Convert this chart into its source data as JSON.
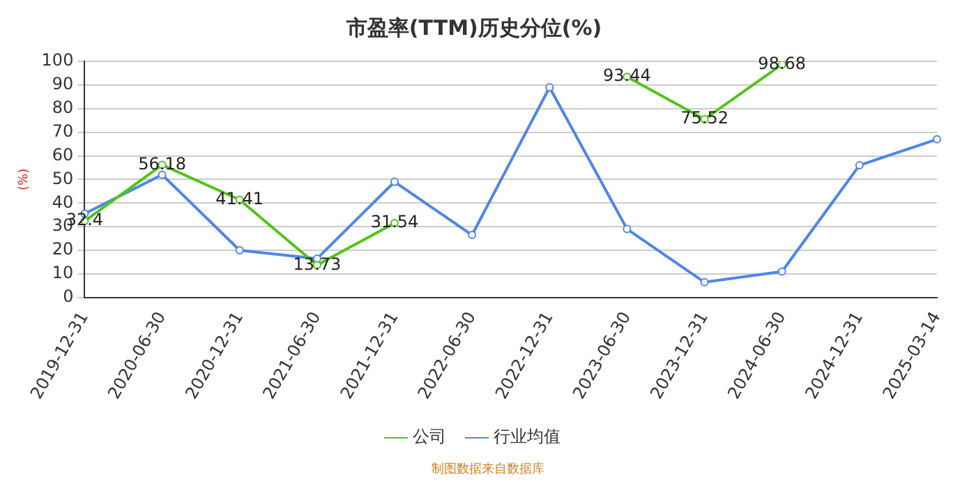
{
  "chart_data": {
    "type": "line",
    "title": "市盈率(TTM)历史分位(%)",
    "ylabel": "(%)",
    "categories": [
      "2019-12-31",
      "2020-06-30",
      "2020-12-31",
      "2021-06-30",
      "2021-12-31",
      "2022-06-30",
      "2022-12-31",
      "2023-06-30",
      "2023-12-31",
      "2024-06-30",
      "2024-12-31",
      "2025-03-14"
    ],
    "series": [
      {
        "name": "公司",
        "color": "#52c41a",
        "values": [
          32.4,
          56.18,
          41.41,
          13.73,
          31.54,
          null,
          null,
          93.44,
          75.52,
          98.68,
          null,
          null
        ],
        "value_labels": [
          "32.4",
          "56.18",
          "41.41",
          "13.73",
          "31.54",
          null,
          null,
          "93.44",
          "75.52",
          "98.68",
          null,
          null
        ]
      },
      {
        "name": "行业均值",
        "color": "#4e86e8",
        "values": [
          35.5,
          52,
          20,
          16.5,
          49,
          26.5,
          89,
          29,
          6.5,
          11,
          56,
          67
        ]
      }
    ],
    "ylim": [
      0,
      100
    ],
    "yticks": [
      0,
      10,
      20,
      30,
      40,
      50,
      60,
      70,
      80,
      90,
      100
    ],
    "grid": "y",
    "legend": "bottom",
    "marker": "circle",
    "line_style": "solid",
    "annotations": [
      "制图数据来自数据库"
    ]
  }
}
